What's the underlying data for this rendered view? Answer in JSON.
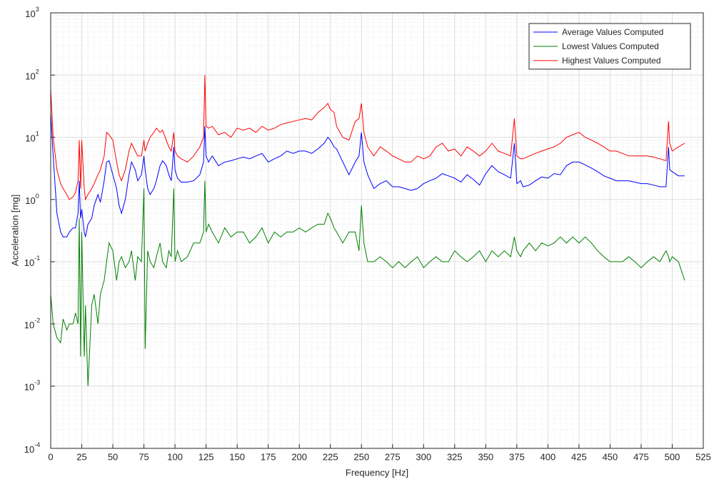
{
  "chart_data": {
    "type": "line",
    "x_label": "Frequency [Hz]",
    "y_label": "Acceleration [mg]",
    "log_y": true,
    "grid": true,
    "minor_grid": true,
    "legend": "upper right",
    "xlim": [
      0,
      525
    ],
    "xticks": [
      0,
      25,
      50,
      75,
      100,
      125,
      150,
      175,
      200,
      225,
      250,
      275,
      300,
      325,
      350,
      375,
      400,
      425,
      450,
      475,
      500,
      525
    ],
    "ylim": [
      0.0001,
      1000
    ],
    "yticks": [
      {
        "value": 0.0001,
        "label": "10^-4"
      },
      {
        "value": 0.001,
        "label": "10^-3"
      },
      {
        "value": 0.01,
        "label": "10^-2"
      },
      {
        "value": 0.1,
        "label": "10^-1"
      },
      {
        "value": 1,
        "label": "10^0"
      },
      {
        "value": 10,
        "label": "10^1"
      },
      {
        "value": 100,
        "label": "10^2"
      },
      {
        "value": 1000,
        "label": "10^3"
      }
    ],
    "x": [
      0,
      2,
      5,
      8,
      10,
      13,
      15,
      18,
      20,
      22,
      23,
      24,
      25,
      27,
      28,
      30,
      33,
      35,
      38,
      40,
      43,
      45,
      47,
      50,
      53,
      55,
      57,
      60,
      63,
      65,
      68,
      70,
      73,
      75,
      76,
      78,
      80,
      83,
      85,
      88,
      90,
      93,
      95,
      97,
      99,
      100,
      102,
      105,
      110,
      115,
      120,
      123,
      124,
      125,
      127,
      130,
      135,
      140,
      145,
      150,
      155,
      160,
      165,
      170,
      175,
      180,
      185,
      190,
      195,
      200,
      205,
      210,
      215,
      220,
      223,
      225,
      228,
      230,
      235,
      240,
      245,
      248,
      250,
      252,
      255,
      260,
      265,
      270,
      275,
      280,
      285,
      290,
      295,
      300,
      305,
      310,
      315,
      320,
      325,
      330,
      335,
      340,
      345,
      350,
      355,
      360,
      365,
      370,
      373,
      375,
      378,
      380,
      385,
      390,
      395,
      400,
      405,
      410,
      415,
      420,
      425,
      430,
      435,
      440,
      445,
      450,
      455,
      460,
      465,
      470,
      475,
      480,
      485,
      490,
      495,
      497,
      498,
      500,
      505,
      510
    ],
    "series": [
      {
        "name": "Average Values Computed",
        "color": "#0000ff",
        "values": [
          25,
          5,
          0.6,
          0.3,
          0.25,
          0.25,
          0.3,
          0.35,
          0.35,
          0.6,
          2,
          0.5,
          0.7,
          0.3,
          0.25,
          0.4,
          0.5,
          0.8,
          1.2,
          0.9,
          2,
          4,
          4.2,
          2.5,
          1.5,
          0.8,
          0.6,
          1,
          2.5,
          4,
          3,
          2,
          2.5,
          5,
          3,
          1.5,
          1.2,
          1.5,
          2,
          3.5,
          4.2,
          3.5,
          2.5,
          2,
          7,
          3,
          2.2,
          1.9,
          1.9,
          2,
          2.5,
          4,
          15,
          5,
          4,
          5,
          3.5,
          4,
          4.2,
          4.5,
          4.8,
          4.5,
          5,
          5.5,
          4,
          4.5,
          5,
          6,
          5.5,
          6,
          6,
          5.5,
          6.5,
          8,
          10,
          9,
          7,
          6.5,
          4,
          2.5,
          4,
          5,
          12,
          4,
          2.5,
          1.5,
          1.8,
          2,
          1.6,
          1.6,
          1.5,
          1.4,
          1.5,
          1.8,
          2,
          2.2,
          2.6,
          2.4,
          2.2,
          1.9,
          2.5,
          2.1,
          1.7,
          2.6,
          3.5,
          2.8,
          2.5,
          2.2,
          8,
          1.8,
          2,
          1.6,
          1.7,
          2,
          2.3,
          2.2,
          2.6,
          2.5,
          3.5,
          4,
          4,
          3.6,
          3.2,
          2.8,
          2.4,
          2.2,
          2,
          2,
          2,
          1.9,
          1.8,
          1.8,
          1.7,
          1.6,
          1.6,
          7,
          3,
          2.8,
          2.4,
          2.4
        ]
      },
      {
        "name": "Lowest Values Computed",
        "color": "#007f00",
        "values": [
          0.03,
          0.01,
          0.006,
          0.005,
          0.012,
          0.008,
          0.01,
          0.01,
          0.015,
          0.01,
          0.5,
          0.003,
          0.3,
          0.003,
          0.02,
          0.001,
          0.02,
          0.03,
          0.01,
          0.03,
          0.05,
          0.1,
          0.2,
          0.15,
          0.05,
          0.1,
          0.12,
          0.08,
          0.1,
          0.15,
          0.05,
          0.12,
          0.1,
          1.5,
          0.004,
          0.15,
          0.1,
          0.08,
          0.12,
          0.2,
          0.1,
          0.08,
          0.15,
          0.12,
          1.5,
          0.1,
          0.15,
          0.1,
          0.12,
          0.2,
          0.2,
          0.3,
          2,
          0.3,
          0.4,
          0.3,
          0.2,
          0.35,
          0.25,
          0.3,
          0.3,
          0.2,
          0.25,
          0.35,
          0.2,
          0.3,
          0.25,
          0.3,
          0.3,
          0.35,
          0.3,
          0.35,
          0.4,
          0.4,
          0.6,
          0.5,
          0.35,
          0.3,
          0.2,
          0.3,
          0.3,
          0.15,
          0.8,
          0.2,
          0.1,
          0.1,
          0.12,
          0.1,
          0.08,
          0.1,
          0.08,
          0.1,
          0.12,
          0.08,
          0.1,
          0.12,
          0.1,
          0.1,
          0.15,
          0.12,
          0.1,
          0.12,
          0.15,
          0.1,
          0.15,
          0.12,
          0.15,
          0.12,
          0.25,
          0.15,
          0.12,
          0.15,
          0.2,
          0.15,
          0.2,
          0.18,
          0.2,
          0.25,
          0.2,
          0.25,
          0.2,
          0.25,
          0.2,
          0.15,
          0.12,
          0.1,
          0.1,
          0.1,
          0.12,
          0.1,
          0.08,
          0.1,
          0.12,
          0.1,
          0.15,
          0.12,
          0.1,
          0.12,
          0.1,
          0.05
        ]
      },
      {
        "name": "Highest Values Computed",
        "color": "#ff0000",
        "values": [
          60,
          10,
          3,
          1.8,
          1.5,
          1.2,
          1,
          1.1,
          1.3,
          2,
          9,
          1.5,
          9,
          1.5,
          1,
          1.2,
          1.5,
          1.8,
          2.5,
          3,
          5,
          12,
          11,
          9,
          4,
          2.5,
          2,
          3,
          6,
          8,
          6,
          5,
          5,
          9,
          6,
          8,
          10,
          12,
          14,
          12,
          13,
          9,
          7,
          6,
          12,
          6,
          5,
          4.5,
          4,
          5,
          7,
          10,
          100,
          15,
          14,
          15,
          11,
          12,
          10,
          14,
          13,
          14,
          12,
          15,
          13,
          14,
          16,
          17,
          18,
          19,
          20,
          19,
          25,
          30,
          35,
          28,
          25,
          15,
          10,
          9,
          18,
          20,
          35,
          12,
          7,
          5,
          7,
          6,
          5,
          4.5,
          4,
          4,
          5,
          4.5,
          5,
          7,
          8,
          6,
          6.5,
          5,
          7,
          6,
          5,
          6,
          8,
          6,
          5.5,
          5,
          20,
          5,
          4.5,
          4.5,
          5,
          5.5,
          6,
          6.5,
          7,
          8,
          10,
          11,
          12,
          10,
          9,
          8,
          7,
          6,
          6,
          5.5,
          5,
          5,
          5,
          5,
          4.8,
          4.5,
          4.2,
          18,
          8,
          6,
          7,
          8
        ]
      }
    ]
  }
}
